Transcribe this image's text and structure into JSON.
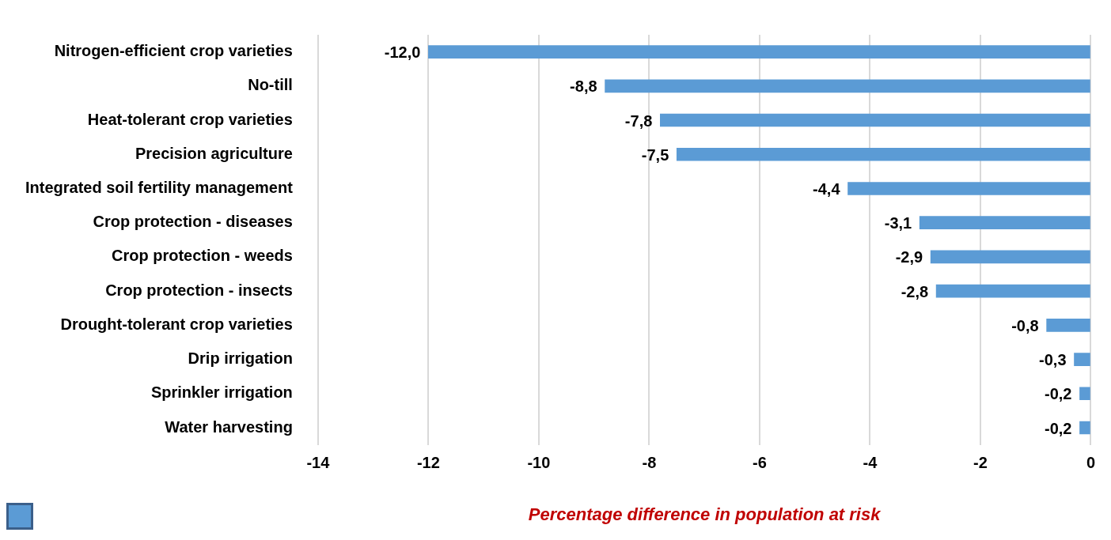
{
  "chart_data": {
    "type": "bar",
    "orientation": "horizontal",
    "xlabel": "Percentage difference in population at risk",
    "categories": [
      "Nitrogen-efficient crop varieties",
      "No-till",
      "Heat-tolerant crop varieties",
      "Precision agriculture",
      "Integrated soil fertility management",
      "Crop protection - diseases",
      "Crop protection - weeds",
      "Crop protection - insects",
      "Drought-tolerant crop varieties",
      "Drip irrigation",
      "Sprinkler irrigation",
      "Water harvesting"
    ],
    "values": [
      -12.0,
      -8.8,
      -7.8,
      -7.5,
      -4.4,
      -3.1,
      -2.9,
      -2.8,
      -0.8,
      -0.3,
      -0.2,
      -0.2
    ],
    "value_labels": [
      "-12,0",
      "-8,8",
      "-7,8",
      "-7,5",
      "-4,4",
      "-3,1",
      "-2,9",
      "-2,8",
      "-0,8",
      "-0,3",
      "-0,2",
      "-0,2"
    ],
    "color": "#5b9bd5",
    "xlim": [
      -14,
      0
    ],
    "xticks": [
      -14,
      -12,
      -10,
      -8,
      -6,
      -4,
      -2,
      0
    ],
    "grid": "x",
    "legend": false
  }
}
